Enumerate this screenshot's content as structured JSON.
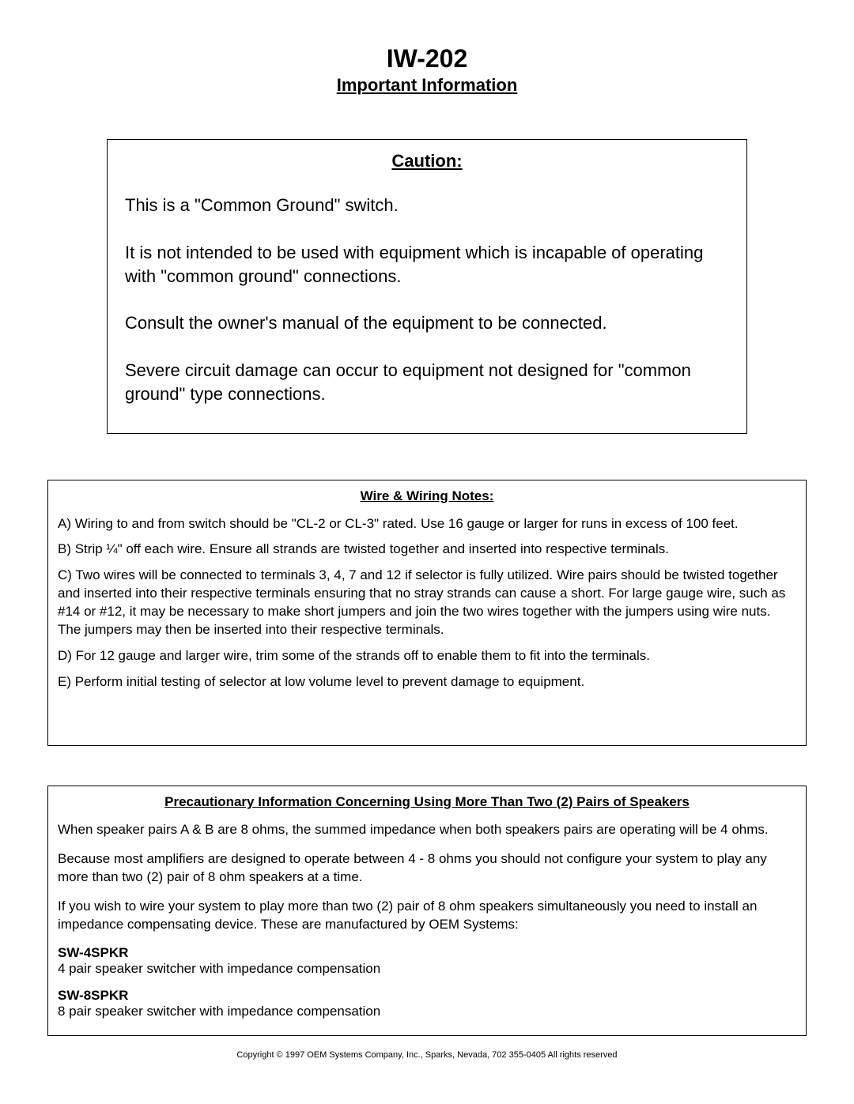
{
  "header": {
    "title": "IW-202",
    "subtitle": "Important Information"
  },
  "caution": {
    "heading": "Caution:",
    "paragraphs": [
      "This is a \"Common Ground\" switch.",
      "It is not intended to be used with equipment which is incapable of operating with \"common ground\" connections.",
      "Consult the owner's manual of the equipment to be connected.",
      "Severe circuit damage can occur to equipment not designed for \"common ground\" type connections."
    ]
  },
  "wiring": {
    "heading": "Wire & Wiring Notes:",
    "items": [
      "A)  Wiring to and from switch should be \"CL-2 or CL-3\" rated.  Use 16 gauge or larger for runs in excess of 100 feet.",
      "B)  Strip ¼\" off each wire.   Ensure all strands are twisted together and inserted into respective terminals.",
      "C)  Two wires will be connected to terminals 3, 4, 7 and 12 if selector is fully utilized.  Wire pairs should be twisted together and inserted into their respective terminals ensuring that no stray strands can cause a short.  For large gauge wire, such as #14 or  #12, it may be necessary to make short jumpers and join the two wires together with the jumpers using wire nuts.  The jumpers may then be inserted into their respective terminals.",
      "D)  For 12 gauge and larger wire, trim some of the strands off to enable them to fit into the terminals.",
      "E)  Perform initial testing of selector at low volume level to prevent damage to equipment."
    ]
  },
  "precaution": {
    "heading": "Precautionary Information Concerning Using More Than Two (2) Pairs of Speakers",
    "paragraphs": [
      "When speaker pairs A & B are 8 ohms, the summed impedance when both speakers pairs are operating will be 4 ohms.",
      "Because most amplifiers are designed to operate between 4 - 8 ohms you should not configure your system to play any more than two (2) pair of 8 ohm speakers at a time.",
      "If you wish to wire your system to play more than two (2) pair of 8 ohm speakers simultaneously you need to install an impedance compensating device.  These are manufactured by OEM Systems:"
    ],
    "products": [
      {
        "name": "SW-4SPKR",
        "desc": "4 pair speaker switcher with impedance compensation"
      },
      {
        "name": "SW-8SPKR",
        "desc": "8 pair speaker switcher with impedance compensation"
      }
    ]
  },
  "copyright": "Copyright © 1997 OEM Systems Company, Inc., Sparks, Nevada, 702 355-0405    All rights reserved"
}
